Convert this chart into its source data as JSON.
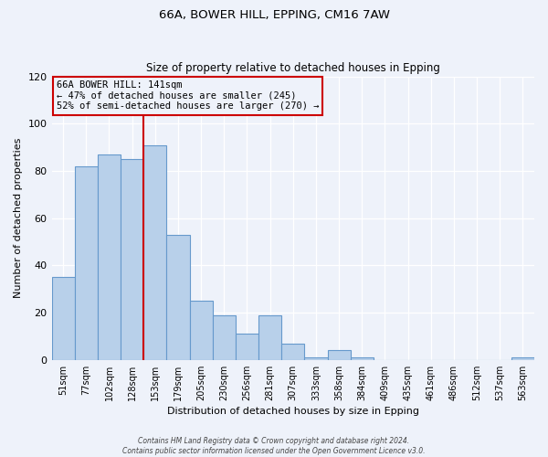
{
  "title": "66A, BOWER HILL, EPPING, CM16 7AW",
  "subtitle": "Size of property relative to detached houses in Epping",
  "xlabel": "Distribution of detached houses by size in Epping",
  "ylabel": "Number of detached properties",
  "bar_labels": [
    "51sqm",
    "77sqm",
    "102sqm",
    "128sqm",
    "153sqm",
    "179sqm",
    "205sqm",
    "230sqm",
    "256sqm",
    "281sqm",
    "307sqm",
    "333sqm",
    "358sqm",
    "384sqm",
    "409sqm",
    "435sqm",
    "461sqm",
    "486sqm",
    "512sqm",
    "537sqm",
    "563sqm"
  ],
  "bar_values": [
    35,
    82,
    87,
    85,
    91,
    53,
    25,
    19,
    11,
    19,
    7,
    1,
    4,
    1,
    0,
    0,
    0,
    0,
    0,
    0,
    1
  ],
  "bar_color": "#b8d0ea",
  "bar_edge_color": "#6699cc",
  "vline_color": "#cc0000",
  "annotation_line1": "66A BOWER HILL: 141sqm",
  "annotation_line2": "← 47% of detached houses are smaller (245)",
  "annotation_line3": "52% of semi-detached houses are larger (270) →",
  "annotation_box_color": "#cc0000",
  "ylim": [
    0,
    120
  ],
  "yticks": [
    0,
    20,
    40,
    60,
    80,
    100,
    120
  ],
  "footer_line1": "Contains HM Land Registry data © Crown copyright and database right 2024.",
  "footer_line2": "Contains public sector information licensed under the Open Government Licence v3.0.",
  "background_color": "#eef2fa",
  "grid_color": "#ffffff",
  "title_fontsize": 9.5,
  "subtitle_fontsize": 8.5,
  "axis_label_fontsize": 8,
  "tick_fontsize": 7,
  "annotation_fontsize": 7.5,
  "footer_fontsize": 5.5
}
